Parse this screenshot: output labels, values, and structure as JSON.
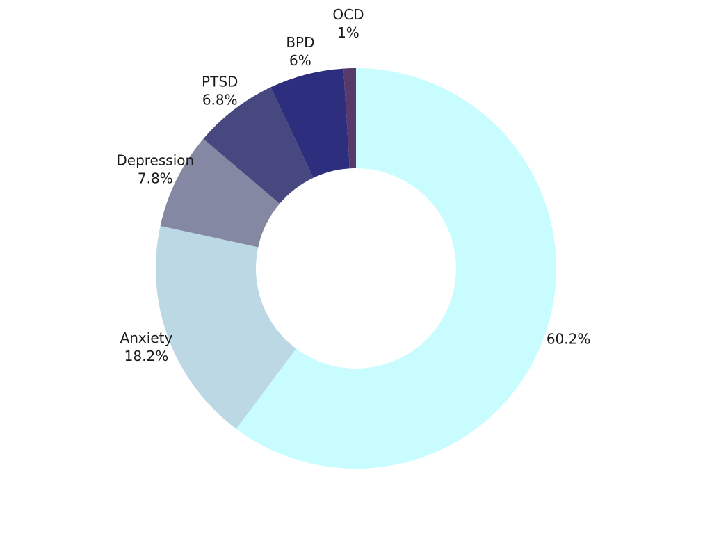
{
  "chart_data": {
    "type": "pie",
    "variant": "donut",
    "legend": "none",
    "slices": [
      {
        "name": "",
        "value": 60.2,
        "label": "60.2%",
        "color": "#c8fcff"
      },
      {
        "name": "Anxiety",
        "value": 18.2,
        "label": "18.2%",
        "color": "#bdd8e5"
      },
      {
        "name": "Depression",
        "value": 7.8,
        "label": "7.8%",
        "color": "#8588a3"
      },
      {
        "name": "PTSD",
        "value": 6.8,
        "label": "6.8%",
        "color": "#47487f"
      },
      {
        "name": "BPD",
        "value": 6,
        "label": "6%",
        "color": "#2e2e7e"
      },
      {
        "name": "OCD",
        "value": 1,
        "label": "1%",
        "color": "#573a69"
      }
    ]
  }
}
